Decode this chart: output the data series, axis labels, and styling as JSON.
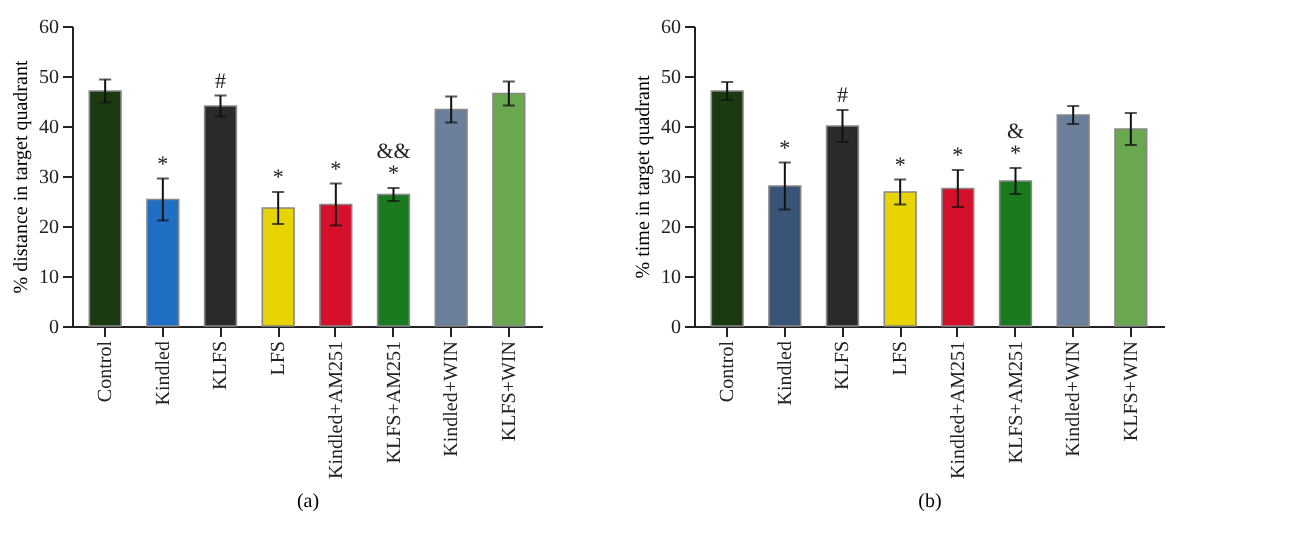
{
  "chart_data": [
    {
      "type": "bar",
      "ylabel": "% distance in target quadrant",
      "xlabel": "(a)",
      "categories": [
        "Control",
        "Kindled",
        "KLFS",
        "LFS",
        "Kindled+AM251",
        "KLFS+AM251",
        "Kindled+WIN",
        "KLFS+WIN"
      ],
      "values": [
        47,
        25.3,
        44,
        23.6,
        24.3,
        26.3,
        43.3,
        46.5
      ],
      "errors": [
        2.3,
        4.2,
        2.1,
        3.2,
        4.2,
        1.3,
        2.6,
        2.4
      ],
      "colors": [
        "#1c3a12",
        "#1f6fc5",
        "#2a2a2a",
        "#e8d400",
        "#d4102a",
        "#1a7a20",
        "#6b7f9a",
        "#6aa84f"
      ],
      "ylim": [
        0,
        60
      ],
      "yticks": [
        0,
        10,
        20,
        30,
        40,
        50,
        60
      ],
      "grid": false,
      "legend": false,
      "value_labels": [
        null,
        "*",
        "#",
        "*",
        "*",
        "&&\n*",
        null,
        null
      ]
    },
    {
      "type": "bar",
      "ylabel": "% time in target quadrant",
      "xlabel": "(b)",
      "categories": [
        "Control",
        "Kindled",
        "KLFS",
        "LFS",
        "Kindled+AM251",
        "KLFS+AM251",
        "Kindled+WIN",
        "KLFS+WIN"
      ],
      "values": [
        47,
        28,
        40,
        26.8,
        27.5,
        29,
        42.2,
        39.4
      ],
      "errors": [
        1.8,
        4.7,
        3.2,
        2.5,
        3.7,
        2.6,
        1.8,
        3.2
      ],
      "colors": [
        "#1c3a12",
        "#3a5478",
        "#2a2a2a",
        "#e8d400",
        "#d4102a",
        "#1a7a20",
        "#6b7f9a",
        "#6aa84f"
      ],
      "ylim": [
        0,
        60
      ],
      "yticks": [
        0,
        10,
        20,
        30,
        40,
        50,
        60
      ],
      "grid": false,
      "legend": false,
      "value_labels": [
        null,
        "*",
        "#",
        "*",
        "*",
        "&\n*",
        null,
        null
      ]
    }
  ]
}
